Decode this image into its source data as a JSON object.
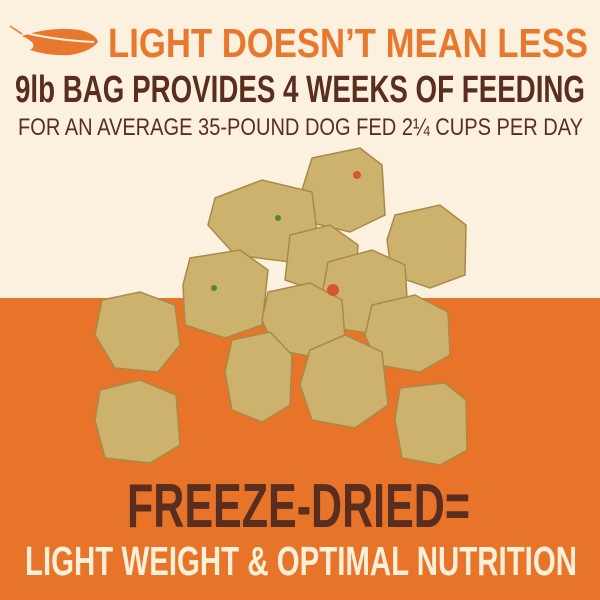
{
  "colors": {
    "background": "#fcf1df",
    "orange_band": "#e8742a",
    "headline_orange": "#e8782e",
    "brown": "#5a2e1f",
    "cream_text": "#fdf0d8",
    "kibble": "#cdb26e"
  },
  "header": {
    "icon": "feather-icon",
    "title": "LIGHT DOESN’T MEAN LESS",
    "subtitle": "9lb BAG PROVIDES 4 WEEKS OF FEEDING",
    "note": "FOR AN AVERAGE 35-POUND DOG FED 2¼ CUPS PER DAY"
  },
  "image": {
    "subject": "freeze-dried-food-chunks"
  },
  "footer": {
    "headline": "FREEZE-DRIED=",
    "tagline": "LIGHT WEIGHT & OPTIMAL NUTRITION"
  }
}
